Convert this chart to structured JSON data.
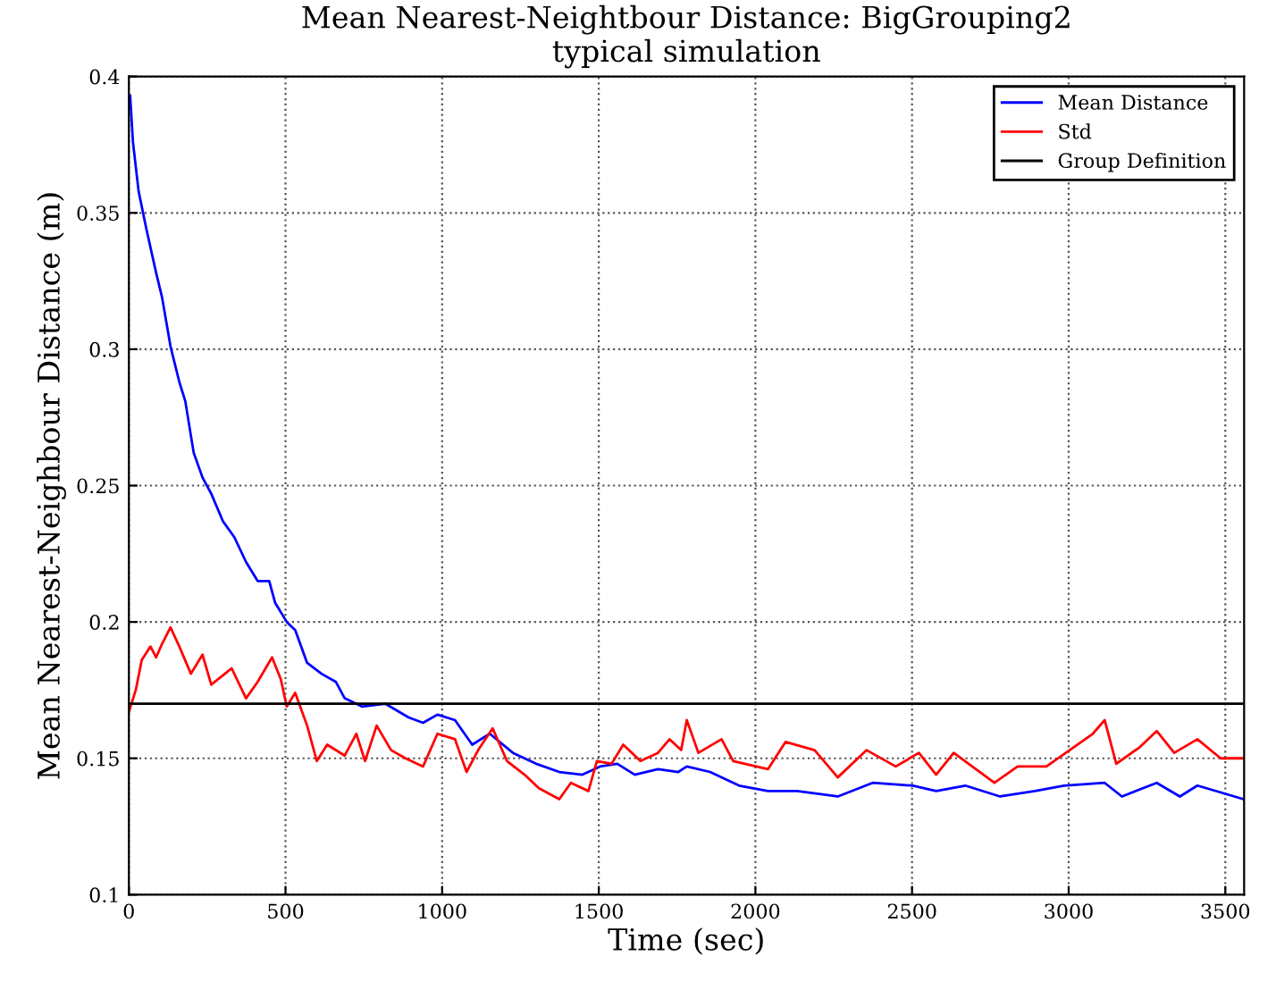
{
  "chart_data": {
    "type": "line",
    "title": "Mean Nearest-Neightbour Distance: BigGrouping2\ntypical simulation",
    "xlabel": "Time (sec)",
    "ylabel": "Mean Nearest-Neighbour Distance (m)",
    "xlim": [
      0,
      3560
    ],
    "ylim": [
      0.1,
      0.4
    ],
    "xticks": [
      0,
      500,
      1000,
      1500,
      2000,
      2500,
      3000,
      3500
    ],
    "yticks": [
      0.1,
      0.15,
      0.2,
      0.25,
      0.3,
      0.35,
      0.4
    ],
    "grid": true,
    "legend": "top right",
    "marker": "none",
    "line_style": "solid",
    "series": [
      {
        "name": "Mean Distance",
        "color": "#0000ff",
        "x": [
          4,
          13,
          31,
          56,
          87,
          106,
          133,
          161,
          180,
          207,
          235,
          263,
          300,
          337,
          374,
          411,
          448,
          467,
          504,
          531,
          569,
          615,
          661,
          689,
          744,
          819,
          893,
          939,
          985,
          1041,
          1096,
          1152,
          1226,
          1300,
          1374,
          1448,
          1504,
          1559,
          1615,
          1689,
          1754,
          1781,
          1855,
          1948,
          2040,
          2133,
          2263,
          2374,
          2503,
          2577,
          2670,
          2781,
          2892,
          2985,
          3115,
          3170,
          3281,
          3355,
          3411,
          3559
        ],
        "values": [
          0.393,
          0.376,
          0.358,
          0.344,
          0.328,
          0.319,
          0.301,
          0.288,
          0.281,
          0.262,
          0.253,
          0.247,
          0.237,
          0.231,
          0.222,
          0.215,
          0.215,
          0.207,
          0.2,
          0.197,
          0.185,
          0.181,
          0.178,
          0.172,
          0.169,
          0.17,
          0.165,
          0.163,
          0.166,
          0.164,
          0.155,
          0.159,
          0.152,
          0.148,
          0.145,
          0.144,
          0.147,
          0.148,
          0.144,
          0.146,
          0.145,
          0.147,
          0.145,
          0.14,
          0.138,
          0.138,
          0.136,
          0.141,
          0.14,
          0.138,
          0.14,
          0.136,
          0.138,
          0.14,
          0.141,
          0.136,
          0.141,
          0.136,
          0.14,
          0.135
        ]
      },
      {
        "name": "Std",
        "color": "#ff0000",
        "x": [
          0,
          22,
          41,
          69,
          87,
          106,
          133,
          161,
          198,
          235,
          263,
          328,
          374,
          411,
          457,
          485,
          504,
          531,
          569,
          600,
          633,
          689,
          726,
          754,
          791,
          837,
          883,
          939,
          985,
          1041,
          1078,
          1115,
          1161,
          1207,
          1263,
          1309,
          1374,
          1411,
          1467,
          1494,
          1541,
          1578,
          1633,
          1689,
          1726,
          1763,
          1781,
          1818,
          1892,
          1929,
          2040,
          2096,
          2189,
          2263,
          2355,
          2448,
          2522,
          2577,
          2633,
          2763,
          2837,
          2929,
          3003,
          3077,
          3115,
          3152,
          3226,
          3281,
          3337,
          3411,
          3485,
          3559
        ],
        "values": [
          0.167,
          0.175,
          0.186,
          0.191,
          0.187,
          0.192,
          0.198,
          0.191,
          0.181,
          0.188,
          0.177,
          0.183,
          0.172,
          0.178,
          0.187,
          0.179,
          0.169,
          0.174,
          0.162,
          0.149,
          0.155,
          0.151,
          0.159,
          0.149,
          0.162,
          0.153,
          0.15,
          0.147,
          0.159,
          0.157,
          0.145,
          0.153,
          0.161,
          0.149,
          0.144,
          0.139,
          0.135,
          0.141,
          0.138,
          0.149,
          0.148,
          0.155,
          0.149,
          0.152,
          0.157,
          0.153,
          0.164,
          0.152,
          0.157,
          0.149,
          0.146,
          0.156,
          0.153,
          0.143,
          0.153,
          0.147,
          0.152,
          0.144,
          0.152,
          0.141,
          0.147,
          0.147,
          0.153,
          0.159,
          0.164,
          0.148,
          0.154,
          0.16,
          0.152,
          0.157,
          0.15,
          0.15
        ]
      },
      {
        "name": "Group Definition",
        "color": "#000000",
        "x": [
          0,
          3560
        ],
        "values": [
          0.17,
          0.17
        ]
      }
    ]
  }
}
